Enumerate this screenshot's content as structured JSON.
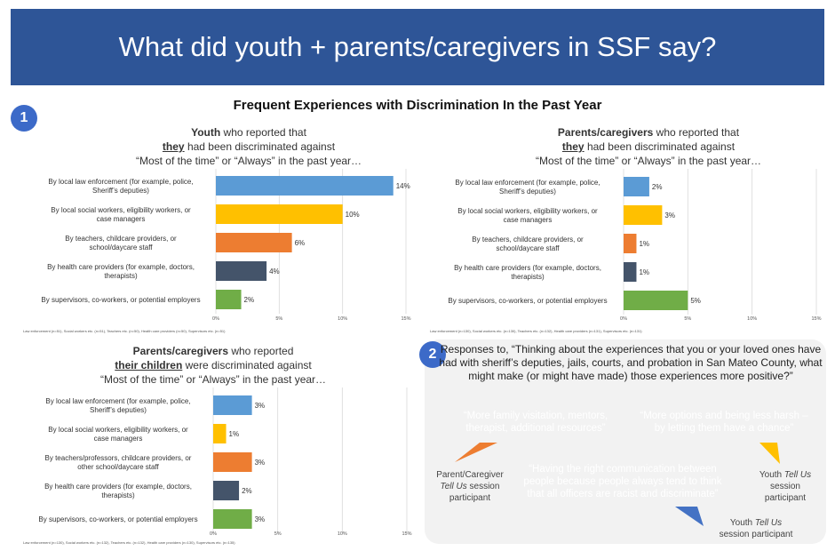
{
  "banner": {
    "title": "What did youth + parents/caregivers in SSF say?"
  },
  "section_title": "Frequent Experiences with Discrimination In the Past Year",
  "badges": {
    "one": "1",
    "two": "2"
  },
  "panels": {
    "youth": {
      "heading": {
        "bold": "Youth",
        "rest1": " who reported that",
        "underline": "they",
        "rest2": " had been discriminated against",
        "line3": "“Most of the time” or “Always” in the past year…"
      },
      "footnote": "Law enforcement (n=51), Social workers etc. (n=51), Teachers etc. (n=50), Health care providers (n=50), Supervisors etc. (n=51)"
    },
    "parents_self": {
      "heading": {
        "bold": "Parents/caregivers",
        "rest1": " who reported that",
        "underline": "they",
        "rest2": " had been discriminated against",
        "line3": "“Most of the time” or “Always” in the past year…"
      },
      "footnote": "Law enforcement (n=130), Social workers etc. (n=130), Teachers etc. (n=132), Health care providers (n=131), Supervisors etc. (n=131)"
    },
    "parents_children": {
      "heading": {
        "bold": "Parents/caregivers",
        "rest1": " who reported",
        "underline": "their children",
        "rest2": " were discriminated against",
        "line3": "“Most of the time” or “Always” in the past year…"
      },
      "footnote": "Law enforcement (n=130), Social workers etc. (n=132), Teachers etc. (n=132), Health care providers (n=130), Supervisors etc. (n=135)"
    }
  },
  "chart_data": [
    {
      "type": "bar",
      "orientation": "horizontal",
      "title": "Youth who reported that they had been discriminated against “Most of the time” or “Always” in the past year…",
      "categories": [
        "By local law enforcement (for example, police, Sheriff’s deputies)",
        "By local social workers, eligibility workers, or case managers",
        "By teachers, childcare providers, or school/daycare staff",
        "By health care providers (for example, doctors, therapists)",
        "By supervisors, co-workers, or potential employers"
      ],
      "values": [
        14,
        10,
        6,
        4,
        2
      ],
      "data_labels": [
        "14%",
        "10%",
        "6%",
        "4%",
        "2%"
      ],
      "colors": [
        "#5b9bd5",
        "#ffc000",
        "#ed7d31",
        "#44546a",
        "#70ad47"
      ],
      "xlim": [
        0,
        15
      ],
      "ticks": [
        "0%",
        "5%",
        "10%",
        "15%"
      ]
    },
    {
      "type": "bar",
      "orientation": "horizontal",
      "title": "Parents/caregivers who reported that they had been discriminated against “Most of the time” or “Always” in the past year…",
      "categories": [
        "By local law enforcement (for example, police, Sheriff’s deputies)",
        "By local social workers, eligibility workers, or case managers",
        "By teachers, childcare providers, or school/daycare staff",
        "By health care providers (for example, doctors, therapists)",
        "By supervisors, co-workers, or potential employers"
      ],
      "values": [
        2,
        3,
        1,
        1,
        5
      ],
      "data_labels": [
        "2%",
        "3%",
        "1%",
        "1%",
        "5%"
      ],
      "colors": [
        "#5b9bd5",
        "#ffc000",
        "#ed7d31",
        "#44546a",
        "#70ad47"
      ],
      "xlim": [
        0,
        15
      ],
      "ticks": [
        "0%",
        "5%",
        "10%",
        "15%"
      ]
    },
    {
      "type": "bar",
      "orientation": "horizontal",
      "title": "Parents/caregivers who reported their children were discriminated against “Most of the time” or “Always” in the past year…",
      "categories": [
        "By local law enforcement (for example, police, Sheriff’s deputies)",
        "By local social workers, eligibility workers, or case managers",
        "By teachers/professors, childcare providers, or other school/daycare staff",
        "By health care providers (for example, doctors, therapists)",
        "By supervisors, co-workers, or potential employers"
      ],
      "values": [
        3,
        1,
        3,
        2,
        3
      ],
      "data_labels": [
        "3%",
        "1%",
        "3%",
        "2%",
        "3%"
      ],
      "colors": [
        "#5b9bd5",
        "#ffc000",
        "#ed7d31",
        "#44546a",
        "#70ad47"
      ],
      "xlim": [
        0,
        15
      ],
      "ticks": [
        "0%",
        "5%",
        "10%",
        "15%"
      ]
    }
  ],
  "responses": {
    "question": "Responses to, “Thinking about the experiences that you or your loved ones have had with sheriff’s deputies, jails, courts, and probation in San Mateo County, what might make (or might have made) those experiences more positive?”",
    "quotes": [
      {
        "text": "“More family visitation, mentors, therapist, additional resources”",
        "color": "#ed7d31",
        "who_line1": "Parent/Caregiver",
        "who_italic": "Tell Us",
        "who_line2": " session",
        "who_line3": "participant"
      },
      {
        "text": "“More options and being less harsh – by letting them have a chance”",
        "color": "#ffc000",
        "who_line1": "Youth ",
        "who_italic": "Tell Us",
        "who_line2": "session",
        "who_line3": "participant"
      },
      {
        "text": "“Having the right communication between people because people always tend to think that all officers are racist and discriminate”",
        "color": "#4472c4",
        "who_line1": "Youth ",
        "who_italic": "Tell Us",
        "who_line2": "session participant",
        "who_line3": ""
      }
    ]
  }
}
